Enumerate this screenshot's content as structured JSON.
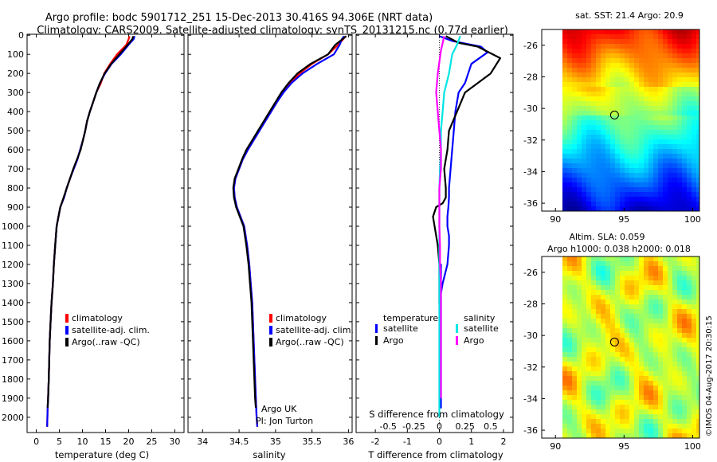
{
  "header": {
    "title_line1": "Argo profile: bodc 5901712_251 15-Dec-2013 30.416S 94.306E (NRT data)",
    "title_line2": "Climatology: CARS2009. Satellite-adjusted climatology: synTS_20131215.nc (0.77d earlier)"
  },
  "colors": {
    "climatology": "#ff0000",
    "satellite": "#0000ff",
    "argo": "#000000",
    "salinity_satellite": "#00e5e5",
    "salinity_argo": "#ff00ff"
  },
  "depth_ticks": [
    "0",
    "100",
    "200",
    "300",
    "400",
    "500",
    "600",
    "700",
    "800",
    "900",
    "1000",
    "1100",
    "1200",
    "1300",
    "1400",
    "1500",
    "1600",
    "1700",
    "1800",
    "1900",
    "2000"
  ],
  "chart_data": [
    {
      "type": "line",
      "id": "temperature",
      "xlabel": "temperature (deg C)",
      "xlim": [
        -2,
        32
      ],
      "ylim": [
        2080,
        -5
      ],
      "xticks": [
        "0",
        "5",
        "10",
        "15",
        "20",
        "25",
        "30"
      ],
      "legend": {
        "placement": "bottom-left",
        "entries": [
          "climatology",
          "satellite-adj. clim.",
          "Argo(..raw -QC)"
        ]
      },
      "series": [
        {
          "name": "climatology",
          "color": "#ff0000",
          "x": [
            20.2,
            20.0,
            19.5,
            17.5,
            16.0,
            14.7,
            14.0,
            13.0,
            12.3,
            11.6,
            11.0,
            10.6,
            10.1,
            9.5,
            8.9,
            8.1,
            7.3,
            6.6,
            6.0,
            5.2,
            4.8,
            4.4,
            4.1,
            3.8,
            3.6,
            3.3,
            3.1,
            2.9,
            2.8,
            2.7,
            2.55,
            2.45,
            2.4,
            2.35
          ],
          "y": [
            5,
            20,
            50,
            100,
            150,
            200,
            250,
            300,
            350,
            400,
            450,
            500,
            550,
            600,
            650,
            700,
            750,
            800,
            850,
            900,
            950,
            1000,
            1100,
            1200,
            1300,
            1400,
            1500,
            1600,
            1700,
            1800,
            1900,
            1950,
            2000,
            2050
          ]
        },
        {
          "name": "satellite-adj. clim.",
          "color": "#0000ff",
          "x": [
            21.3,
            21.1,
            20.0,
            18.3,
            16.3,
            14.9,
            13.8,
            13.0,
            12.3,
            11.6,
            11.0,
            10.6,
            10.1,
            9.5,
            8.9,
            8.1,
            7.3,
            6.6,
            6.0,
            5.2,
            4.8,
            4.4,
            4.1,
            3.8,
            3.6,
            3.3,
            3.1,
            2.9,
            2.8,
            2.7,
            2.55,
            2.45,
            2.4,
            2.35
          ],
          "y": [
            5,
            20,
            50,
            100,
            150,
            200,
            250,
            300,
            350,
            400,
            450,
            500,
            550,
            600,
            650,
            700,
            750,
            800,
            850,
            900,
            950,
            1000,
            1100,
            1200,
            1300,
            1400,
            1500,
            1600,
            1700,
            1800,
            1900,
            1950,
            2000,
            2050
          ]
        },
        {
          "name": "Argo(..raw -QC)",
          "color": "#000000",
          "x": [
            21.0,
            20.8,
            19.8,
            18.0,
            16.2,
            14.8,
            13.8,
            13.0,
            12.3,
            11.6,
            11.0,
            10.6,
            10.1,
            9.6,
            8.8,
            8.0,
            7.3,
            6.6,
            5.9,
            5.2,
            4.8,
            4.4,
            4.1,
            3.8,
            3.6,
            3.3,
            3.1,
            2.9,
            2.8,
            2.7,
            2.55,
            2.45
          ],
          "y": [
            5,
            20,
            50,
            100,
            150,
            200,
            250,
            300,
            350,
            400,
            450,
            500,
            550,
            600,
            650,
            700,
            750,
            800,
            850,
            900,
            950,
            1000,
            1100,
            1200,
            1300,
            1400,
            1500,
            1600,
            1700,
            1800,
            1900,
            1950
          ]
        }
      ]
    },
    {
      "type": "line",
      "id": "salinity",
      "xlabel": "salinity",
      "xlim": [
        33.8,
        36.05
      ],
      "ylim": [
        2080,
        -5
      ],
      "xticks": [
        "34",
        "34.5",
        "35",
        "35.5",
        "36"
      ],
      "legend": {
        "placement": "bottom-right",
        "entries": [
          "climatology",
          "satellite-adj. clim.",
          "Argo(..raw -QC)"
        ]
      },
      "annotation": [
        "Argo UK",
        "PI: Jon Turton"
      ],
      "series": [
        {
          "name": "climatology",
          "color": "#ff0000",
          "x": [
            35.96,
            35.93,
            35.86,
            35.72,
            35.5,
            35.33,
            35.2,
            35.1,
            35.02,
            34.94,
            34.86,
            34.78,
            34.7,
            34.62,
            34.55,
            34.5,
            34.45,
            34.43,
            34.44,
            34.47,
            34.52,
            34.57,
            34.61,
            34.64,
            34.66,
            34.68,
            34.69,
            34.7,
            34.71,
            34.72,
            34.73,
            34.74,
            34.75
          ],
          "y": [
            5,
            20,
            50,
            100,
            150,
            200,
            250,
            300,
            350,
            400,
            450,
            500,
            550,
            600,
            650,
            700,
            750,
            800,
            850,
            900,
            950,
            1000,
            1100,
            1200,
            1300,
            1400,
            1500,
            1600,
            1700,
            1800,
            1900,
            2000,
            2050
          ]
        },
        {
          "name": "satellite-adj. clim.",
          "color": "#0000ff",
          "x": [
            35.94,
            35.91,
            35.88,
            35.8,
            35.57,
            35.37,
            35.22,
            35.11,
            35.02,
            34.94,
            34.86,
            34.78,
            34.7,
            34.62,
            34.55,
            34.5,
            34.45,
            34.43,
            34.44,
            34.47,
            34.52,
            34.57,
            34.61,
            34.64,
            34.66,
            34.68,
            34.69,
            34.7,
            34.71,
            34.72,
            34.73,
            34.74,
            34.75
          ],
          "y": [
            5,
            20,
            50,
            100,
            150,
            200,
            250,
            300,
            350,
            400,
            450,
            500,
            550,
            600,
            650,
            700,
            750,
            800,
            850,
            900,
            950,
            1000,
            1100,
            1200,
            1300,
            1400,
            1500,
            1600,
            1700,
            1800,
            1900,
            2000,
            2050
          ]
        },
        {
          "name": "Argo(..raw -QC)",
          "color": "#000000",
          "x": [
            35.97,
            35.92,
            35.82,
            35.72,
            35.48,
            35.3,
            35.18,
            35.08,
            35.0,
            34.92,
            34.84,
            34.76,
            34.68,
            34.6,
            34.54,
            34.49,
            34.44,
            34.42,
            34.43,
            34.46,
            34.51,
            34.56,
            34.6,
            34.63,
            34.65,
            34.67,
            34.68,
            34.69,
            34.7,
            34.71,
            34.72,
            34.73
          ],
          "y": [
            5,
            20,
            50,
            100,
            150,
            200,
            250,
            300,
            350,
            400,
            450,
            500,
            550,
            600,
            650,
            700,
            750,
            800,
            850,
            900,
            950,
            1000,
            1100,
            1200,
            1300,
            1400,
            1500,
            1600,
            1700,
            1800,
            1900,
            1950
          ]
        }
      ]
    },
    {
      "type": "line",
      "id": "difference",
      "xlabel": "T difference from climatology",
      "xlabel_top": "S difference from climatology",
      "xlim": [
        -2.6,
        2.3
      ],
      "ylim": [
        2080,
        -5
      ],
      "xticks": [
        "-2",
        "-1",
        "0",
        "1",
        "2"
      ],
      "xticks_s": [
        "-0.5",
        "-0.25",
        "0",
        "0.25",
        "0.5"
      ],
      "legend": {
        "placement": "middle",
        "temperature_title": "temperature",
        "salinity_title": "salinity",
        "entries": [
          "satellite",
          "Argo",
          "satellite",
          "Argo"
        ]
      },
      "series": [
        {
          "name": "satellite",
          "group": "temperature",
          "color": "#0000ff",
          "x": [
            0.0,
            0.4,
            1.3,
            1.5,
            1.0,
            0.8,
            0.6,
            0.5,
            0.45,
            0.4,
            0.35,
            0.3,
            0.3,
            0.28,
            0.25,
            0.25,
            0.3,
            0.3,
            0.25,
            0.1,
            0.0,
            0.05,
            0.05,
            0.05,
            0.05,
            0.05,
            0.05,
            0.05,
            0.05,
            0.05,
            0.05
          ],
          "y": [
            5,
            30,
            60,
            90,
            150,
            250,
            300,
            400,
            500,
            600,
            700,
            800,
            850,
            900,
            950,
            1000,
            1050,
            1100,
            1200,
            1300,
            1400,
            1500,
            1600,
            1700,
            1800,
            1900,
            1950,
            1200,
            1300,
            1400,
            1500
          ]
        },
        {
          "name": "Argo",
          "group": "temperature",
          "color": "#000000",
          "x": [
            0.2,
            0.6,
            1.2,
            1.9,
            1.6,
            0.8,
            0.6,
            0.3,
            0.25,
            0.15,
            0.2,
            0.2,
            0.1,
            -0.1,
            -0.2,
            -0.15,
            -0.05,
            0.0,
            0.0,
            0.0,
            0.02,
            0.02,
            0.02,
            0.02,
            0.02
          ],
          "y": [
            5,
            40,
            60,
            120,
            200,
            300,
            380,
            500,
            600,
            700,
            800,
            850,
            880,
            900,
            950,
            1000,
            1100,
            1200,
            1300,
            1400,
            1500,
            1600,
            1700,
            1800,
            1900
          ]
        },
        {
          "name": "satellite",
          "group": "salinity",
          "color": "#00e5e5",
          "x": [
            0.65,
            0.55,
            0.4,
            0.3,
            0.15,
            0.1,
            0.05,
            0.05,
            0.02,
            0.0,
            0.0,
            0.0,
            0.0,
            0.0,
            0.0,
            0.0,
            0.0,
            0.0,
            0.0,
            0.0,
            0.0,
            0.0,
            0.0
          ],
          "y": [
            5,
            50,
            100,
            200,
            300,
            400,
            500,
            600,
            700,
            800,
            900,
            1000,
            1100,
            1200,
            1300,
            1400,
            1500,
            1600,
            1700,
            1800,
            1900,
            1950,
            2000
          ]
        },
        {
          "name": "Argo",
          "group": "salinity",
          "color": "#ff00ff",
          "x": [
            0.15,
            0.05,
            -0.05,
            -0.1,
            -0.05,
            0.0,
            0.05,
            0.05,
            0.0,
            0.0,
            0.0,
            0.02,
            0.02,
            0.05,
            0.05,
            0.05,
            0.05,
            0.05,
            0.05,
            0.05
          ],
          "y": [
            5,
            80,
            200,
            300,
            400,
            500,
            600,
            700,
            800,
            900,
            1000,
            1100,
            1200,
            1300,
            1400,
            1500,
            1600,
            1700,
            1800,
            1900
          ]
        }
      ]
    },
    {
      "type": "heatmap",
      "id": "sst_map",
      "title": "sat. SST: 21.4  Argo: 20.9",
      "xlim": [
        89,
        100.5
      ],
      "ylim": [
        -36.5,
        -25
      ],
      "xticks": [
        "90",
        "95",
        "100"
      ],
      "yticks": [
        "-26",
        "-28",
        "-30",
        "-32",
        "-34",
        "-36"
      ],
      "marker": {
        "lon": 94.306,
        "lat": -30.416
      }
    },
    {
      "type": "heatmap",
      "id": "sla_map",
      "title_line1": "Altim. SLA: 0.059",
      "title_line2": "Argo h1000: 0.038 h2000: 0.018",
      "xlim": [
        89,
        100.5
      ],
      "ylim": [
        -36.5,
        -25
      ],
      "xticks": [
        "90",
        "95",
        "100"
      ],
      "yticks": [
        "-26",
        "-28",
        "-30",
        "-32",
        "-34",
        "-36"
      ],
      "marker": {
        "lon": 94.306,
        "lat": -30.416
      }
    }
  ],
  "footer": {
    "credit": "©IMOS 04-Aug-2017 20:30:15"
  }
}
